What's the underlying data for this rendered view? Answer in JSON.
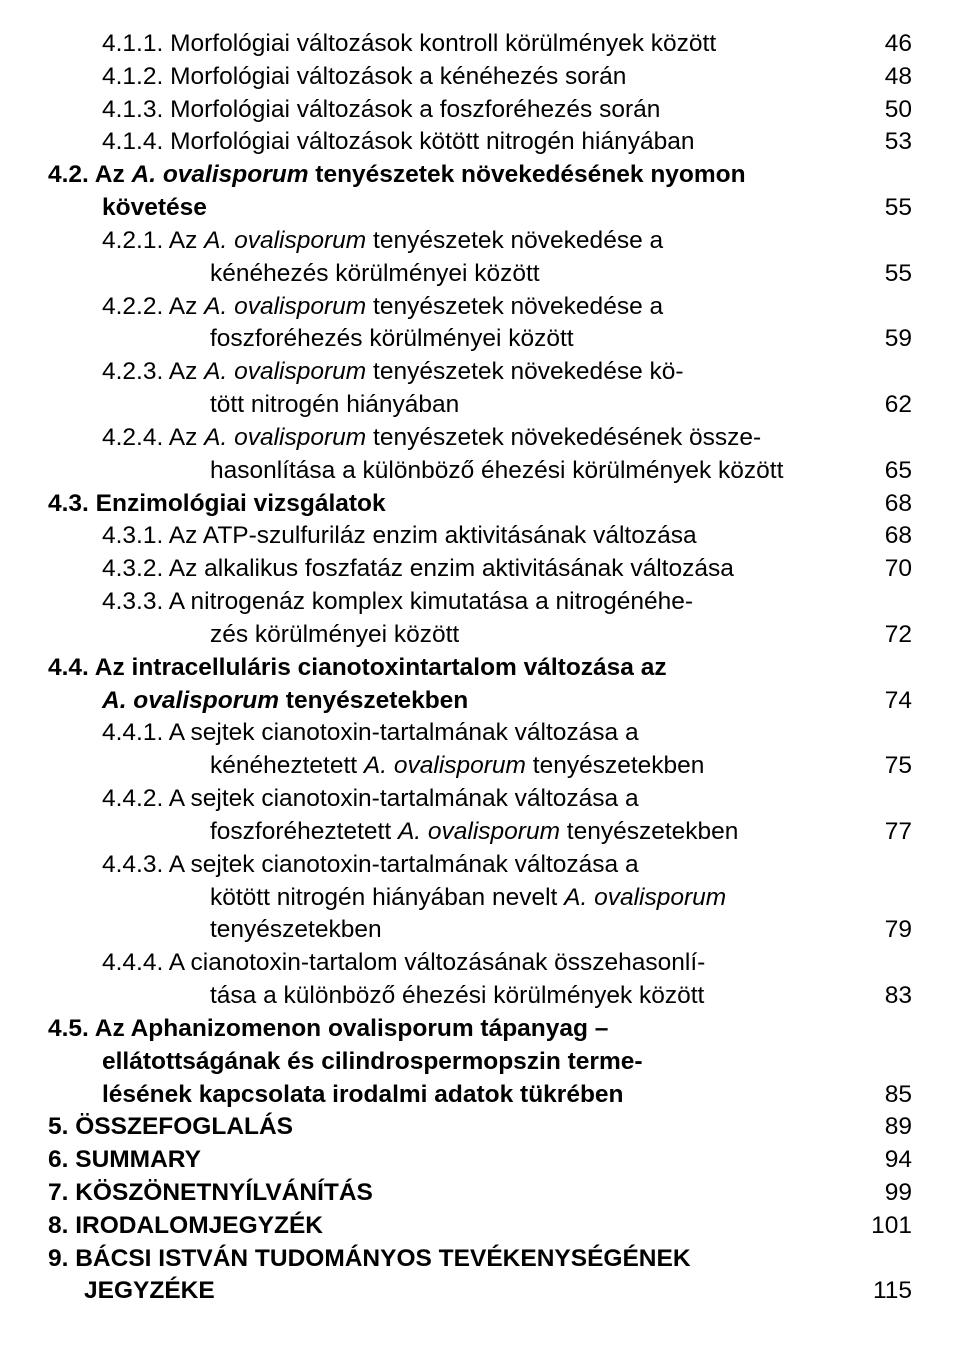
{
  "toc": [
    {
      "kind": "row",
      "level": "lv1",
      "text": "4.1.1. Morfológiai változások kontroll körülmények között",
      "page": "46"
    },
    {
      "kind": "row",
      "level": "lv1",
      "text": "4.1.2. Morfológiai változások a kénéhezés során",
      "page": "48"
    },
    {
      "kind": "row",
      "level": "lv1",
      "text": "4.1.3. Morfológiai változások a foszforéhezés során",
      "page": "50"
    },
    {
      "kind": "row",
      "level": "lv1",
      "text": "4.1.4. Morfológiai változások kötött nitrogén hiányában",
      "page": "53"
    },
    {
      "kind": "cont",
      "level": "lv0",
      "segments": [
        {
          "t": "4.2. Az ",
          "b": true
        },
        {
          "t": "A. ovalisporum",
          "b": true,
          "i": true
        },
        {
          "t": " tenyészetek növekedésének nyomon",
          "b": true
        }
      ]
    },
    {
      "kind": "row",
      "level": "cont0b",
      "segments": [
        {
          "t": "követése",
          "b": true
        }
      ],
      "page": "55"
    },
    {
      "kind": "cont",
      "level": "lv1",
      "segments": [
        {
          "t": "4.2.1. Az "
        },
        {
          "t": "A. ovalisporum",
          "i": true
        },
        {
          "t": " tenyészetek növekedése a"
        }
      ]
    },
    {
      "kind": "row",
      "level": "cont2",
      "segments": [
        {
          "t": "kénéhezés körülményei között"
        }
      ],
      "page": "55"
    },
    {
      "kind": "cont",
      "level": "lv1",
      "segments": [
        {
          "t": "4.2.2. Az "
        },
        {
          "t": "A. ovalisporum",
          "i": true
        },
        {
          "t": " tenyészetek növekedése a"
        }
      ]
    },
    {
      "kind": "row",
      "level": "cont2",
      "segments": [
        {
          "t": "foszforéhezés körülményei között"
        }
      ],
      "page": "59"
    },
    {
      "kind": "cont",
      "level": "lv1",
      "segments": [
        {
          "t": "4.2.3. Az "
        },
        {
          "t": "A. ovalisporum",
          "i": true
        },
        {
          "t": " tenyészetek növekedése kö-"
        }
      ]
    },
    {
      "kind": "row",
      "level": "cont2",
      "segments": [
        {
          "t": "tött nitrogén hiányában"
        }
      ],
      "page": "62"
    },
    {
      "kind": "cont",
      "level": "lv1",
      "segments": [
        {
          "t": "4.2.4. Az "
        },
        {
          "t": "A. ovalisporum",
          "i": true
        },
        {
          "t": " tenyészetek növekedésének össze-"
        }
      ]
    },
    {
      "kind": "row",
      "level": "cont2",
      "segments": [
        {
          "t": "hasonlítása a különböző éhezési körülmények között"
        }
      ],
      "page": "65"
    },
    {
      "kind": "row",
      "level": "lv0",
      "segments": [
        {
          "t": "4.3. Enzimológiai vizsgálatok",
          "b": true
        }
      ],
      "page": "68"
    },
    {
      "kind": "row",
      "level": "lv1",
      "text": "4.3.1. Az ATP-szulfuriláz enzim aktivitásának változása",
      "page": "68"
    },
    {
      "kind": "row",
      "level": "lv1",
      "text": "4.3.2. Az alkalikus foszfatáz enzim aktivitásának változása",
      "page": "70"
    },
    {
      "kind": "cont",
      "level": "lv1",
      "text": "4.3.3. A nitrogenáz komplex kimutatása a nitrogénéhe-"
    },
    {
      "kind": "row",
      "level": "cont2",
      "text": "zés körülményei között",
      "page": "72"
    },
    {
      "kind": "cont",
      "level": "lv0",
      "segments": [
        {
          "t": "4.4. Az intracelluláris cianotoxintartalom változása az",
          "b": true
        }
      ]
    },
    {
      "kind": "row",
      "level": "cont0b",
      "segments": [
        {
          "t": "A. ovalisporum",
          "b": true,
          "i": true
        },
        {
          "t": " tenyészetekben",
          "b": true
        }
      ],
      "page": "74"
    },
    {
      "kind": "cont",
      "level": "lv1",
      "text": "4.4.1. A sejtek cianotoxin-tartalmának változása a"
    },
    {
      "kind": "row",
      "level": "cont2",
      "segments": [
        {
          "t": "kénéheztetett "
        },
        {
          "t": "A. ovalisporum",
          "i": true
        },
        {
          "t": " tenyészetekben"
        }
      ],
      "page": "75"
    },
    {
      "kind": "cont",
      "level": "lv1",
      "text": "4.4.2. A sejtek cianotoxin-tartalmának változása a"
    },
    {
      "kind": "row",
      "level": "cont2",
      "segments": [
        {
          "t": "foszforéheztetett "
        },
        {
          "t": "A. ovalisporum",
          "i": true
        },
        {
          "t": " tenyészetekben"
        }
      ],
      "page": "77"
    },
    {
      "kind": "cont",
      "level": "lv1",
      "text": "4.4.3. A sejtek cianotoxin-tartalmának változása a"
    },
    {
      "kind": "cont",
      "level": "cont2",
      "segments": [
        {
          "t": "kötött nitrogén hiányában nevelt "
        },
        {
          "t": "A. ovalisporum",
          "i": true
        }
      ]
    },
    {
      "kind": "row",
      "level": "cont2",
      "text": "tenyészetekben",
      "page": "79"
    },
    {
      "kind": "cont",
      "level": "lv1",
      "text": "4.4.4. A cianotoxin-tartalom változásának összehasonlí-"
    },
    {
      "kind": "row",
      "level": "cont2",
      "text": "tása a különböző éhezési körülmények között",
      "page": "83"
    },
    {
      "kind": "cont",
      "level": "lv0",
      "segments": [
        {
          "t": "4.5. Az Aphanizomenon ovalisporum tápanyag –",
          "b": true
        }
      ]
    },
    {
      "kind": "cont",
      "level": "cont0b",
      "segments": [
        {
          "t": "ellátottságának és cilindrospermopszin terme-",
          "b": true
        }
      ]
    },
    {
      "kind": "row",
      "level": "cont0b",
      "segments": [
        {
          "t": "lésének kapcsolata irodalmi adatok tükrében",
          "b": true
        }
      ],
      "page": "85"
    },
    {
      "kind": "row",
      "level": "lv0",
      "segments": [
        {
          "t": "5. ÖSSZEFOGLALÁS",
          "b": true
        }
      ],
      "page": "89"
    },
    {
      "kind": "row",
      "level": "lv0",
      "segments": [
        {
          "t": "6. SUMMARY",
          "b": true
        }
      ],
      "page": "94"
    },
    {
      "kind": "row",
      "level": "lv0",
      "segments": [
        {
          "t": "7. KÖSZÖNETNYÍLVÁNÍTÁS",
          "b": true
        }
      ],
      "page": "99"
    },
    {
      "kind": "row",
      "level": "lv0",
      "segments": [
        {
          "t": "8. IRODALOMJEGYZÉK",
          "b": true
        }
      ],
      "page": "101"
    },
    {
      "kind": "cont",
      "level": "lv0",
      "segments": [
        {
          "t": "9. BÁCSI ISTVÁN TUDOMÁNYOS TEVÉKENYSÉGÉNEK",
          "b": true
        }
      ]
    },
    {
      "kind": "row",
      "level": "lv0",
      "segments": [
        {
          "t": "JEGYZÉKE",
          "b": true
        }
      ],
      "page": "115",
      "labelPadLeft": "36px"
    }
  ]
}
